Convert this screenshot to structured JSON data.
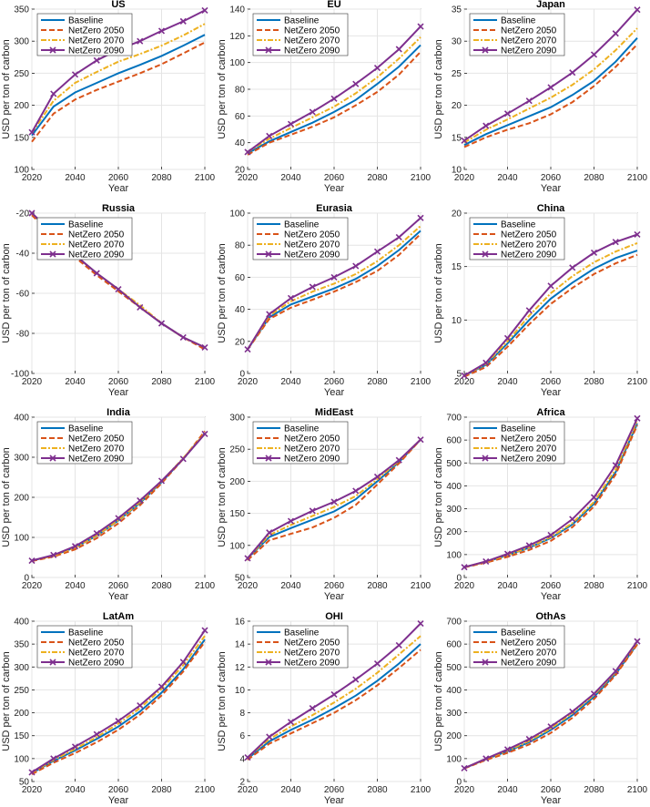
{
  "series_styles": [
    {
      "name": "Baseline",
      "color": "#0072BD",
      "dash": "",
      "marker": "none"
    },
    {
      "name": "NetZero 2050",
      "color": "#D95319",
      "dash": "6,3",
      "marker": "none"
    },
    {
      "name": "NetZero 2070",
      "color": "#EDB120",
      "dash": "6,2,2,2",
      "marker": "none"
    },
    {
      "name": "NetZero 2090",
      "color": "#7E2F8E",
      "dash": "",
      "marker": "x"
    }
  ],
  "chart_data": [
    {
      "type": "line",
      "title": "US",
      "xlabel": "Year",
      "ylabel": "USD per ton of carbon",
      "xlim": [
        2020,
        2100
      ],
      "ylim": [
        100,
        350
      ],
      "xticks": [
        2020,
        2040,
        2060,
        2080,
        2100
      ],
      "yticks": [
        100,
        150,
        200,
        250,
        300,
        350
      ],
      "x": [
        2020,
        2030,
        2040,
        2050,
        2060,
        2070,
        2080,
        2090,
        2100
      ],
      "series": [
        {
          "name": "Baseline",
          "values": [
            153,
            198,
            220,
            235,
            250,
            263,
            277,
            293,
            310
          ]
        },
        {
          "name": "NetZero 2050",
          "values": [
            143,
            187,
            209,
            224,
            237,
            250,
            264,
            281,
            298
          ]
        },
        {
          "name": "NetZero 2070",
          "values": [
            157,
            207,
            235,
            252,
            268,
            280,
            293,
            309,
            327
          ]
        },
        {
          "name": "NetZero 2090",
          "values": [
            158,
            218,
            248,
            270,
            287,
            300,
            316,
            331,
            348
          ]
        }
      ]
    },
    {
      "type": "line",
      "title": "EU",
      "xlabel": "Year",
      "ylabel": "USD per ton of carbon",
      "xlim": [
        2020,
        2100
      ],
      "ylim": [
        20,
        140
      ],
      "xticks": [
        2020,
        2040,
        2060,
        2080,
        2100
      ],
      "yticks": [
        20,
        40,
        60,
        80,
        100,
        120,
        140
      ],
      "x": [
        2020,
        2030,
        2040,
        2050,
        2060,
        2070,
        2080,
        2090,
        2100
      ],
      "series": [
        {
          "name": "Baseline",
          "values": [
            32,
            41,
            48,
            55,
            63,
            72,
            84,
            97,
            113
          ]
        },
        {
          "name": "NetZero 2050",
          "values": [
            31,
            40,
            46,
            52,
            59,
            68,
            78,
            91,
            108
          ]
        },
        {
          "name": "NetZero 2070",
          "values": [
            33,
            43,
            51,
            59,
            67,
            77,
            89,
            103,
            119
          ]
        },
        {
          "name": "NetZero 2090",
          "values": [
            33,
            45,
            54,
            63,
            73,
            84,
            96,
            110,
            127
          ]
        }
      ]
    },
    {
      "type": "line",
      "title": "Japan",
      "xlabel": "Year",
      "ylabel": "USD per ton of carbon",
      "xlim": [
        2020,
        2100
      ],
      "ylim": [
        10,
        35
      ],
      "xticks": [
        2020,
        2040,
        2060,
        2080,
        2100
      ],
      "yticks": [
        10,
        15,
        20,
        25,
        30,
        35
      ],
      "x": [
        2020,
        2030,
        2040,
        2050,
        2060,
        2070,
        2080,
        2090,
        2100
      ],
      "series": [
        {
          "name": "Baseline",
          "values": [
            13.8,
            15.5,
            16.9,
            18.3,
            19.7,
            21.6,
            23.8,
            26.8,
            30.5
          ]
        },
        {
          "name": "NetZero 2050",
          "values": [
            13.5,
            15.0,
            16.2,
            17.2,
            18.6,
            20.5,
            23.0,
            26.0,
            29.5
          ]
        },
        {
          "name": "NetZero 2070",
          "values": [
            14.2,
            16.2,
            17.8,
            19.5,
            21.2,
            23.2,
            25.6,
            28.6,
            32.0
          ]
        },
        {
          "name": "NetZero 2090",
          "values": [
            14.5,
            16.8,
            18.7,
            20.7,
            22.8,
            25.1,
            27.9,
            31.2,
            34.9
          ]
        }
      ]
    },
    {
      "type": "line",
      "title": "Russia",
      "xlabel": "Year",
      "ylabel": "USD per ton of carbon",
      "xlim": [
        2020,
        2100
      ],
      "ylim": [
        -100,
        -20
      ],
      "xticks": [
        2020,
        2040,
        2060,
        2080,
        2100
      ],
      "yticks": [
        -100,
        -80,
        -60,
        -40,
        -20
      ],
      "x": [
        2020,
        2030,
        2040,
        2050,
        2060,
        2070,
        2080,
        2090,
        2100
      ],
      "series": [
        {
          "name": "Baseline",
          "values": [
            -20,
            -31,
            -41,
            -50,
            -58,
            -67,
            -75,
            -82,
            -87
          ]
        },
        {
          "name": "NetZero 2050",
          "values": [
            -21,
            -32,
            -42,
            -51,
            -59,
            -67,
            -75,
            -82,
            -88
          ]
        },
        {
          "name": "NetZero 2070",
          "values": [
            -20,
            -31,
            -41,
            -50,
            -58,
            -66,
            -75,
            -82,
            -87
          ]
        },
        {
          "name": "NetZero 2090",
          "values": [
            -20,
            -30,
            -41,
            -50,
            -58,
            -67,
            -75,
            -82,
            -87
          ]
        }
      ]
    },
    {
      "type": "line",
      "title": "Eurasia",
      "xlabel": "Year",
      "ylabel": "USD per ton of carbon",
      "xlim": [
        2020,
        2100
      ],
      "ylim": [
        0,
        100
      ],
      "xticks": [
        2020,
        2040,
        2060,
        2080,
        2100
      ],
      "yticks": [
        0,
        20,
        40,
        60,
        80,
        100
      ],
      "x": [
        2020,
        2030,
        2040,
        2050,
        2060,
        2070,
        2080,
        2090,
        2100
      ],
      "series": [
        {
          "name": "Baseline",
          "values": [
            15,
            35,
            43,
            48,
            53,
            59,
            67,
            77,
            89
          ]
        },
        {
          "name": "NetZero 2050",
          "values": [
            15,
            34,
            41,
            46,
            51,
            57,
            64,
            74,
            87
          ]
        },
        {
          "name": "NetZero 2070",
          "values": [
            15,
            36,
            45,
            51,
            56,
            62,
            70,
            80,
            92
          ]
        },
        {
          "name": "NetZero 2090",
          "values": [
            15,
            37,
            47,
            54,
            60,
            67,
            76,
            85,
            97
          ]
        }
      ]
    },
    {
      "type": "line",
      "title": "China",
      "xlabel": "Year",
      "ylabel": "USD per ton of carbon",
      "xlim": [
        2020,
        2100
      ],
      "ylim": [
        5,
        20
      ],
      "xticks": [
        2020,
        2040,
        2060,
        2080,
        2100
      ],
      "yticks": [
        5,
        10,
        15,
        20
      ],
      "x": [
        2020,
        2030,
        2040,
        2050,
        2060,
        2070,
        2080,
        2090,
        2100
      ],
      "series": [
        {
          "name": "Baseline",
          "values": [
            4.8,
            5.8,
            7.8,
            10.0,
            12.0,
            13.5,
            14.8,
            15.8,
            16.5
          ]
        },
        {
          "name": "NetZero 2050",
          "values": [
            4.7,
            5.6,
            7.5,
            9.6,
            11.5,
            13.0,
            14.3,
            15.3,
            16.1
          ]
        },
        {
          "name": "NetZero 2070",
          "values": [
            4.8,
            5.9,
            8.0,
            10.4,
            12.5,
            14.1,
            15.4,
            16.4,
            17.2
          ]
        },
        {
          "name": "NetZero 2090",
          "values": [
            4.8,
            6.0,
            8.3,
            10.9,
            13.2,
            14.9,
            16.3,
            17.3,
            18.0
          ]
        }
      ]
    },
    {
      "type": "line",
      "title": "India",
      "xlabel": "Year",
      "ylabel": "USD per ton of carbon",
      "xlim": [
        2020,
        2100
      ],
      "ylim": [
        0,
        400
      ],
      "xticks": [
        2020,
        2040,
        2060,
        2080,
        2100
      ],
      "yticks": [
        0,
        100,
        200,
        300,
        400
      ],
      "x": [
        2020,
        2030,
        2040,
        2050,
        2060,
        2070,
        2080,
        2090,
        2100
      ],
      "series": [
        {
          "name": "Baseline",
          "values": [
            42,
            55,
            75,
            104,
            142,
            186,
            238,
            296,
            360
          ]
        },
        {
          "name": "NetZero 2050",
          "values": [
            41,
            52,
            70,
            98,
            135,
            180,
            235,
            296,
            365
          ]
        },
        {
          "name": "NetZero 2070",
          "values": [
            42,
            54,
            75,
            105,
            143,
            188,
            240,
            298,
            360
          ]
        },
        {
          "name": "NetZero 2090",
          "values": [
            42,
            56,
            78,
            110,
            148,
            192,
            241,
            296,
            358
          ]
        }
      ]
    },
    {
      "type": "line",
      "title": "MidEast",
      "xlabel": "Year",
      "ylabel": "USD per ton of carbon",
      "xlim": [
        2020,
        2100
      ],
      "ylim": [
        50,
        300
      ],
      "xticks": [
        2020,
        2040,
        2060,
        2080,
        2100
      ],
      "yticks": [
        50,
        100,
        150,
        200,
        250,
        300
      ],
      "x": [
        2020,
        2030,
        2040,
        2050,
        2060,
        2070,
        2080,
        2090,
        2100
      ],
      "series": [
        {
          "name": "Baseline",
          "values": [
            80,
            113,
            127,
            140,
            153,
            172,
            200,
            230,
            265
          ]
        },
        {
          "name": "NetZero 2050",
          "values": [
            77,
            108,
            118,
            128,
            143,
            163,
            195,
            228,
            265
          ]
        },
        {
          "name": "NetZero 2070",
          "values": [
            80,
            116,
            132,
            146,
            160,
            177,
            203,
            232,
            265
          ]
        },
        {
          "name": "NetZero 2090",
          "values": [
            80,
            120,
            138,
            154,
            168,
            185,
            207,
            233,
            265
          ]
        }
      ]
    },
    {
      "type": "line",
      "title": "Africa",
      "xlabel": "Year",
      "ylabel": "USD per ton of carbon",
      "xlim": [
        2020,
        2100
      ],
      "ylim": [
        0,
        700
      ],
      "xticks": [
        2020,
        2040,
        2060,
        2080,
        2100
      ],
      "yticks": [
        0,
        100,
        200,
        300,
        400,
        500,
        600,
        700
      ],
      "x": [
        2020,
        2030,
        2040,
        2050,
        2060,
        2070,
        2080,
        2090,
        2100
      ],
      "series": [
        {
          "name": "Baseline",
          "values": [
            45,
            68,
            97,
            130,
            172,
            232,
            322,
            460,
            672
          ]
        },
        {
          "name": "NetZero 2050",
          "values": [
            44,
            65,
            90,
            120,
            160,
            220,
            310,
            450,
            665
          ]
        },
        {
          "name": "NetZero 2070",
          "values": [
            45,
            68,
            98,
            132,
            176,
            238,
            330,
            472,
            685
          ]
        },
        {
          "name": "NetZero 2090",
          "values": [
            45,
            70,
            103,
            140,
            185,
            255,
            350,
            490,
            695
          ]
        }
      ]
    },
    {
      "type": "line",
      "title": "LatAm",
      "xlabel": "Year",
      "ylabel": "USD per ton of carbon",
      "xlim": [
        2020,
        2100
      ],
      "ylim": [
        50,
        400
      ],
      "xticks": [
        2020,
        2040,
        2060,
        2080,
        2100
      ],
      "yticks": [
        50,
        100,
        150,
        200,
        250,
        300,
        350,
        400
      ],
      "x": [
        2020,
        2030,
        2040,
        2050,
        2060,
        2070,
        2080,
        2090,
        2100
      ],
      "series": [
        {
          "name": "Baseline",
          "values": [
            68,
            95,
            118,
            143,
            170,
            203,
            244,
            295,
            360
          ]
        },
        {
          "name": "NetZero 2050",
          "values": [
            66,
            91,
            112,
            136,
            163,
            196,
            238,
            290,
            355
          ]
        },
        {
          "name": "NetZero 2070",
          "values": [
            69,
            97,
            121,
            147,
            176,
            210,
            252,
            304,
            368
          ]
        },
        {
          "name": "NetZero 2090",
          "values": [
            70,
            100,
            126,
            153,
            182,
            216,
            257,
            311,
            380
          ]
        }
      ]
    },
    {
      "type": "line",
      "title": "OHI",
      "xlabel": "Year",
      "ylabel": "USD per ton of carbon",
      "xlim": [
        2020,
        2100
      ],
      "ylim": [
        2,
        16
      ],
      "xticks": [
        2020,
        2040,
        2060,
        2080,
        2100
      ],
      "yticks": [
        2,
        4,
        6,
        8,
        10,
        12,
        14,
        16
      ],
      "x": [
        2020,
        2030,
        2040,
        2050,
        2060,
        2070,
        2080,
        2090,
        2100
      ],
      "series": [
        {
          "name": "Baseline",
          "values": [
            4.0,
            5.5,
            6.5,
            7.4,
            8.4,
            9.5,
            10.8,
            12.3,
            14.0
          ]
        },
        {
          "name": "NetZero 2050",
          "values": [
            3.9,
            5.3,
            6.2,
            7.1,
            8.0,
            9.1,
            10.4,
            11.9,
            13.5
          ]
        },
        {
          "name": "NetZero 2070",
          "values": [
            4.1,
            5.7,
            6.8,
            7.8,
            8.9,
            10.1,
            11.5,
            13.1,
            14.7
          ]
        },
        {
          "name": "NetZero 2090",
          "values": [
            4.1,
            5.9,
            7.2,
            8.4,
            9.6,
            10.9,
            12.3,
            13.9,
            15.8
          ]
        }
      ]
    },
    {
      "type": "line",
      "title": "OthAs",
      "xlabel": "Year",
      "ylabel": "USD per ton of carbon",
      "xlim": [
        2020,
        2100
      ],
      "ylim": [
        0,
        700
      ],
      "xticks": [
        2020,
        2040,
        2060,
        2080,
        2100
      ],
      "yticks": [
        0,
        100,
        200,
        300,
        400,
        500,
        600,
        700
      ],
      "x": [
        2020,
        2030,
        2040,
        2050,
        2060,
        2070,
        2080,
        2090,
        2100
      ],
      "series": [
        {
          "name": "Baseline",
          "values": [
            58,
            97,
            132,
            172,
            225,
            290,
            370,
            470,
            600
          ]
        },
        {
          "name": "NetZero 2050",
          "values": [
            57,
            94,
            125,
            162,
            212,
            278,
            360,
            465,
            598
          ]
        },
        {
          "name": "NetZero 2070",
          "values": [
            58,
            98,
            135,
            177,
            232,
            298,
            378,
            478,
            608
          ]
        },
        {
          "name": "NetZero 2090",
          "values": [
            58,
            100,
            140,
            185,
            240,
            305,
            383,
            482,
            612
          ]
        }
      ]
    }
  ]
}
